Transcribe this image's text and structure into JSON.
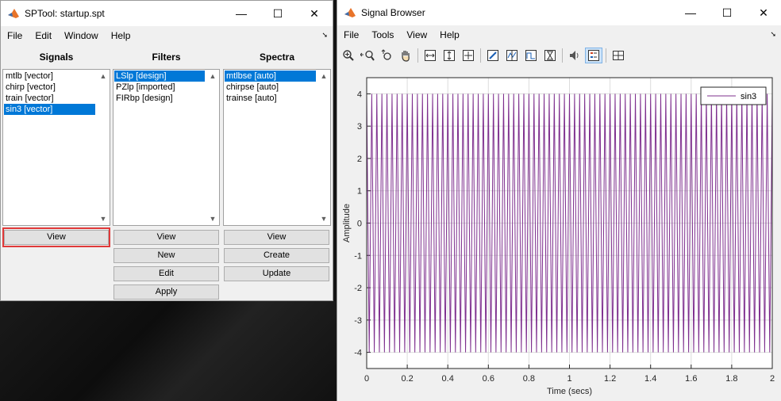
{
  "sptool": {
    "title": "SPTool: startup.spt",
    "menu": [
      "File",
      "Edit",
      "Window",
      "Help"
    ],
    "signals": {
      "header": "Signals",
      "items": [
        "mtlb [vector]",
        "chirp [vector]",
        "train [vector]",
        "sin3 [vector]"
      ],
      "selected_index": 3,
      "buttons": {
        "view": "View"
      }
    },
    "filters": {
      "header": "Filters",
      "items": [
        "LSlp [design]",
        "PZlp [imported]",
        "FIRbp [design]"
      ],
      "selected_index": 0,
      "buttons": {
        "view": "View",
        "new": "New",
        "edit": "Edit",
        "apply": "Apply"
      }
    },
    "spectra": {
      "header": "Spectra",
      "items": [
        "mtlbse [auto]",
        "chirpse [auto]",
        "trainse [auto]"
      ],
      "selected_index": 0,
      "buttons": {
        "view": "View",
        "create": "Create",
        "update": "Update"
      }
    }
  },
  "browser": {
    "title": "Signal Browser",
    "menu": [
      "File",
      "Tools",
      "View",
      "Help"
    ],
    "toolbar_icons": [
      "zoom-in-icon",
      "zoom-out-x-icon",
      "zoom-out-y-icon",
      "pan-hand-icon",
      "fit-x-icon",
      "fit-y-icon",
      "fit-all-icon",
      "edit-pen-icon",
      "marker-vertical-icon",
      "marker-track-icon",
      "marker-slope-icon",
      "speaker-icon",
      "legend-icon",
      "panner-grid-icon"
    ],
    "colors": {
      "signal": "#7e2f8e",
      "accent": "#0078d7"
    }
  },
  "chart_data": {
    "type": "line",
    "title": "",
    "xlabel": "Time (secs)",
    "ylabel": "Amplitude",
    "xlim": [
      0,
      2
    ],
    "ylim": [
      -4.5,
      4.5
    ],
    "xticks": [
      "0",
      "0.2",
      "0.4",
      "0.6",
      "0.8",
      "1",
      "1.2",
      "1.4",
      "1.6",
      "1.8",
      "2"
    ],
    "yticks": [
      "-4",
      "-3",
      "-2",
      "-1",
      "0",
      "1",
      "2",
      "3",
      "4"
    ],
    "grid": true,
    "legend": "top-right",
    "series": [
      {
        "name": "sin3",
        "color": "#7e2f8e",
        "envelope_max": 4,
        "envelope_min": -4,
        "cycles_per_unit": 40
      }
    ]
  }
}
